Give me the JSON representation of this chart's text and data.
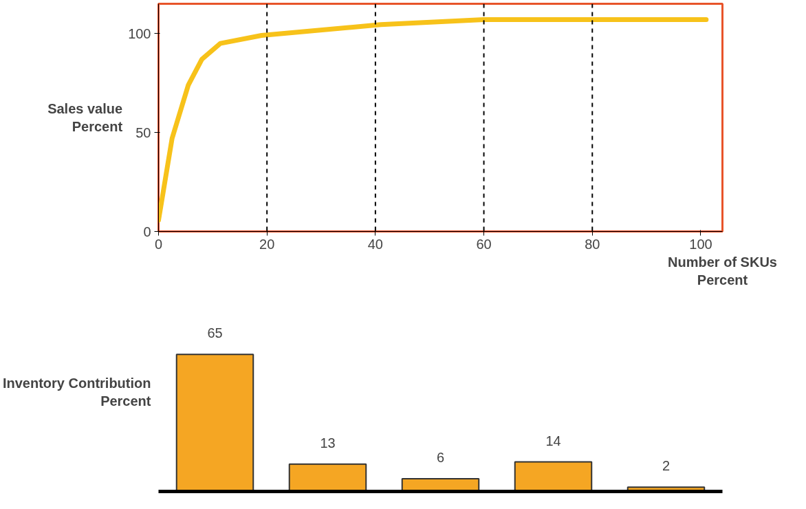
{
  "chart_data": [
    {
      "type": "line",
      "ylabel": "Sales value\nPercent",
      "xlabel": "Number of SKUs\nPercent",
      "x": [
        0,
        2.5,
        5.5,
        8,
        11.4,
        19,
        41,
        60,
        84,
        101
      ],
      "series": [
        {
          "color": "#f7c21a",
          "values": [
            5.7,
            47,
            74,
            87,
            95,
            99,
            104.5,
            107,
            107,
            107
          ]
        }
      ],
      "xlim": [
        0,
        104
      ],
      "ylim": [
        0,
        115
      ],
      "xticks": [
        0,
        20,
        40,
        60,
        80,
        100
      ],
      "yticks": [
        0,
        50,
        100
      ],
      "ref_lines": [
        {
          "axis": "x",
          "value": 20,
          "line_style": "dashed",
          "color": "#000000"
        },
        {
          "axis": "x",
          "value": 40,
          "line_style": "dashed",
          "color": "#000000"
        },
        {
          "axis": "x",
          "value": 60,
          "line_style": "dashed",
          "color": "#000000"
        },
        {
          "axis": "x",
          "value": 80,
          "line_style": "dashed",
          "color": "#000000"
        }
      ],
      "grid": false,
      "marker": "none"
    },
    {
      "type": "bar",
      "ylabel": "Inventory Contribution\nPercent",
      "categories": [
        null,
        null,
        null,
        null,
        null
      ],
      "series": [
        {
          "color": "#f5a623",
          "values": [
            65,
            13,
            6,
            14,
            2
          ]
        }
      ],
      "data_labels": true,
      "tick_labels": false,
      "grid": false
    }
  ]
}
